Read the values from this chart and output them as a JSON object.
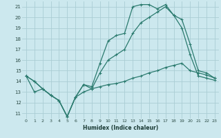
{
  "title": "",
  "xlabel": "Humidex (Indice chaleur)",
  "bg_color": "#cce8ee",
  "grid_color": "#aacdd4",
  "line_color": "#2a7a6e",
  "line1_x": [
    0,
    1,
    2,
    3,
    4,
    5,
    6,
    7,
    8,
    9,
    10,
    11,
    12,
    13,
    14,
    15,
    16,
    17,
    18,
    19,
    20,
    21,
    22,
    23
  ],
  "line1_y": [
    14.5,
    14.0,
    13.3,
    12.7,
    12.2,
    10.7,
    12.5,
    13.7,
    13.5,
    15.7,
    17.8,
    18.3,
    18.5,
    21.0,
    21.2,
    21.2,
    20.8,
    21.2,
    20.2,
    19.8,
    17.5,
    15.0,
    14.8,
    14.3
  ],
  "line2_x": [
    0,
    1,
    2,
    3,
    4,
    5,
    6,
    7,
    8,
    9,
    10,
    11,
    12,
    13,
    14,
    15,
    16,
    17,
    18,
    19,
    20,
    21,
    22,
    23
  ],
  "line2_y": [
    14.5,
    14.0,
    13.3,
    12.7,
    12.2,
    10.7,
    12.5,
    13.7,
    13.3,
    14.8,
    16.0,
    16.5,
    17.0,
    18.5,
    19.5,
    20.0,
    20.5,
    21.0,
    20.2,
    19.0,
    16.5,
    14.5,
    14.3,
    14.1
  ],
  "line3_x": [
    0,
    1,
    2,
    3,
    4,
    5,
    6,
    7,
    8,
    9,
    10,
    11,
    12,
    13,
    14,
    15,
    16,
    17,
    18,
    19,
    20,
    21,
    22,
    23
  ],
  "line3_y": [
    14.5,
    13.0,
    13.3,
    12.7,
    12.2,
    10.7,
    12.5,
    13.0,
    13.3,
    13.5,
    13.7,
    13.8,
    14.0,
    14.3,
    14.5,
    14.8,
    15.0,
    15.3,
    15.5,
    15.7,
    15.0,
    14.8,
    14.6,
    14.3
  ],
  "xlim": [
    -0.5,
    23.5
  ],
  "ylim": [
    10.5,
    21.5
  ],
  "yticks": [
    11,
    12,
    13,
    14,
    15,
    16,
    17,
    18,
    19,
    20,
    21
  ],
  "xticks": [
    0,
    1,
    2,
    3,
    4,
    5,
    6,
    7,
    8,
    9,
    10,
    11,
    12,
    13,
    14,
    15,
    16,
    17,
    18,
    19,
    20,
    21,
    22,
    23
  ],
  "tick_color": "#2a4a44",
  "label_color": "#1a3a34"
}
